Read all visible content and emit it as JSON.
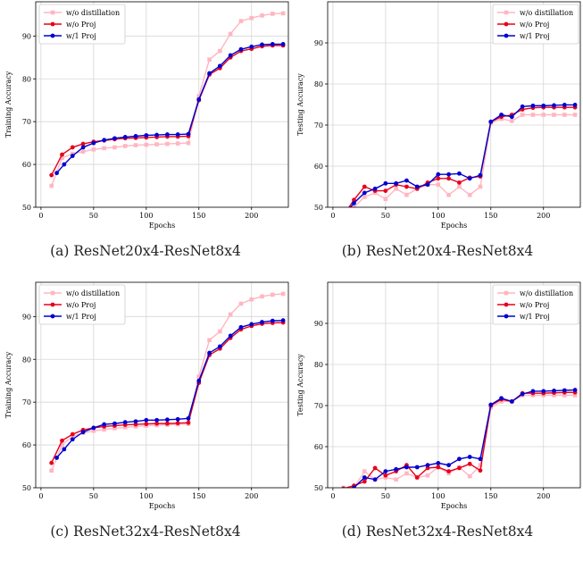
{
  "chart_data": [
    {
      "type": "line",
      "caption": "(a) ResNet20x4-ResNet8x4",
      "xlabel": "Epochs",
      "ylabel": "Training Accuracy",
      "xlim": [
        -5,
        235
      ],
      "ylim": [
        50,
        98
      ],
      "xticks": [
        0,
        50,
        100,
        150,
        200
      ],
      "yticks": [
        50,
        60,
        70,
        80,
        90
      ],
      "grid": true,
      "legend": "top-left",
      "series": [
        {
          "name": "w/o distillation",
          "color": "#ffb6c1",
          "marker": "square",
          "x": [
            10,
            20,
            30,
            40,
            50,
            60,
            70,
            80,
            90,
            100,
            110,
            120,
            130,
            140,
            150,
            160,
            170,
            180,
            190,
            200,
            210,
            220,
            230
          ],
          "y": [
            55.0,
            61.5,
            62.5,
            63.0,
            63.5,
            63.8,
            64.0,
            64.3,
            64.5,
            64.6,
            64.7,
            64.8,
            64.9,
            65.0,
            76.0,
            84.5,
            86.5,
            90.5,
            93.5,
            94.2,
            94.8,
            95.2,
            95.3
          ]
        },
        {
          "name": "w/o Proj",
          "color": "#e8001c",
          "marker": "circle",
          "x": [
            10,
            20,
            30,
            40,
            50,
            60,
            70,
            80,
            90,
            100,
            110,
            120,
            130,
            140,
            150,
            160,
            170,
            180,
            190,
            200,
            210,
            220,
            230
          ],
          "y": [
            57.5,
            62.3,
            64.0,
            64.8,
            65.3,
            65.6,
            65.9,
            66.1,
            66.2,
            66.3,
            66.4,
            66.5,
            66.5,
            66.6,
            75.0,
            81.0,
            82.5,
            85.0,
            86.5,
            87.0,
            87.6,
            87.8,
            87.8
          ]
        },
        {
          "name": "w/1 Proj",
          "color": "#0000d0",
          "marker": "circle",
          "x": [
            15,
            22,
            30,
            40,
            50,
            60,
            70,
            80,
            90,
            100,
            110,
            120,
            130,
            140,
            150,
            160,
            170,
            180,
            190,
            200,
            210,
            220,
            230
          ],
          "y": [
            58.0,
            60.0,
            62.0,
            64.0,
            65.0,
            65.7,
            66.1,
            66.4,
            66.6,
            66.8,
            66.9,
            67.0,
            67.0,
            67.1,
            75.2,
            81.3,
            83.0,
            85.5,
            86.9,
            87.5,
            88.0,
            88.1,
            88.1
          ]
        }
      ]
    },
    {
      "type": "line",
      "caption": "(b) ResNet20x4-ResNet8x4",
      "xlabel": "Epochs",
      "ylabel": "Testing Accuracy",
      "xlim": [
        -5,
        235
      ],
      "ylim": [
        50,
        100
      ],
      "xticks": [
        0,
        50,
        100,
        150,
        200
      ],
      "yticks": [
        50,
        60,
        70,
        80,
        90
      ],
      "grid": true,
      "legend": "top-right",
      "series": [
        {
          "name": "w/o distillation",
          "color": "#ffb6c1",
          "marker": "square",
          "x": [
            10,
            20,
            30,
            40,
            50,
            60,
            70,
            80,
            90,
            100,
            110,
            120,
            130,
            140,
            150,
            160,
            170,
            180,
            190,
            200,
            210,
            220,
            230
          ],
          "y": [
            48.0,
            50.0,
            52.5,
            53.5,
            52.0,
            54.5,
            53.0,
            54.5,
            55.5,
            55.5,
            53.0,
            55.0,
            53.0,
            55.0,
            70.5,
            71.5,
            71.0,
            72.5,
            72.5,
            72.5,
            72.5,
            72.5,
            72.5
          ]
        },
        {
          "name": "w/o Proj",
          "color": "#e8001c",
          "marker": "circle",
          "x": [
            10,
            20,
            30,
            40,
            50,
            60,
            70,
            80,
            90,
            100,
            110,
            120,
            130,
            140,
            150,
            160,
            170,
            180,
            190,
            200,
            210,
            220,
            230
          ],
          "y": [
            48.0,
            51.8,
            55.0,
            54.0,
            54.0,
            55.5,
            55.0,
            54.5,
            56.0,
            57.0,
            57.0,
            56.0,
            57.2,
            57.5,
            70.8,
            72.0,
            72.5,
            73.8,
            74.2,
            74.3,
            74.3,
            74.3,
            74.3
          ]
        },
        {
          "name": "w/1 Proj",
          "color": "#0000d0",
          "marker": "circle",
          "x": [
            10,
            20,
            30,
            40,
            50,
            60,
            70,
            80,
            90,
            100,
            110,
            120,
            130,
            140,
            150,
            160,
            170,
            180,
            190,
            200,
            210,
            220,
            230
          ],
          "y": [
            48.0,
            51.0,
            53.5,
            54.5,
            55.8,
            55.8,
            56.5,
            55.0,
            55.5,
            58.0,
            58.0,
            58.2,
            57.0,
            57.8,
            70.8,
            72.5,
            72.0,
            74.5,
            74.7,
            74.7,
            74.8,
            74.9,
            74.9
          ]
        }
      ]
    },
    {
      "type": "line",
      "caption": "(c) ResNet32x4-ResNet8x4",
      "xlabel": "Epochs",
      "ylabel": "Training Accuracy",
      "xlim": [
        -5,
        235
      ],
      "ylim": [
        50,
        98
      ],
      "xticks": [
        0,
        50,
        100,
        150,
        200
      ],
      "yticks": [
        50,
        60,
        70,
        80,
        90
      ],
      "grid": true,
      "legend": "top-left",
      "series": [
        {
          "name": "w/o distillation",
          "color": "#ffb6c1",
          "marker": "square",
          "x": [
            10,
            20,
            30,
            40,
            50,
            60,
            70,
            80,
            90,
            100,
            110,
            120,
            130,
            140,
            150,
            160,
            170,
            180,
            190,
            200,
            210,
            220,
            230
          ],
          "y": [
            54.0,
            60.0,
            62.0,
            62.8,
            63.3,
            63.6,
            63.9,
            64.1,
            64.3,
            64.5,
            64.6,
            64.7,
            64.8,
            64.9,
            76.0,
            84.5,
            86.5,
            90.5,
            93.0,
            94.0,
            94.7,
            95.1,
            95.3
          ]
        },
        {
          "name": "w/o Proj",
          "color": "#e8001c",
          "marker": "circle",
          "x": [
            10,
            20,
            30,
            40,
            50,
            60,
            70,
            80,
            90,
            100,
            110,
            120,
            130,
            140,
            150,
            160,
            170,
            180,
            190,
            200,
            210,
            220,
            230
          ],
          "y": [
            55.8,
            61.0,
            62.5,
            63.5,
            64.0,
            64.3,
            64.5,
            64.7,
            64.8,
            64.9,
            65.0,
            65.0,
            65.1,
            65.2,
            74.5,
            81.0,
            82.5,
            85.0,
            87.0,
            87.8,
            88.3,
            88.5,
            88.6
          ]
        },
        {
          "name": "w/1 Proj",
          "color": "#0000d0",
          "marker": "circle",
          "x": [
            15,
            22,
            30,
            40,
            50,
            60,
            70,
            80,
            90,
            100,
            110,
            120,
            130,
            140,
            150,
            160,
            170,
            180,
            190,
            200,
            210,
            220,
            230
          ],
          "y": [
            57.0,
            59.0,
            61.3,
            63.0,
            64.0,
            64.8,
            65.0,
            65.3,
            65.5,
            65.8,
            65.8,
            65.9,
            66.0,
            66.2,
            75.0,
            81.5,
            83.0,
            85.5,
            87.5,
            88.2,
            88.7,
            89.0,
            89.1
          ]
        }
      ]
    },
    {
      "type": "line",
      "caption": "(d) ResNet32x4-ResNet8x4",
      "xlabel": "Epochs",
      "ylabel": "Testing Accuracy",
      "xlim": [
        -5,
        235
      ],
      "ylim": [
        50,
        100
      ],
      "xticks": [
        0,
        50,
        100,
        150,
        200
      ],
      "yticks": [
        50,
        60,
        70,
        80,
        90
      ],
      "grid": true,
      "legend": "top-right",
      "series": [
        {
          "name": "w/o distillation",
          "color": "#ffb6c1",
          "marker": "square",
          "x": [
            10,
            20,
            30,
            40,
            50,
            60,
            70,
            80,
            90,
            100,
            110,
            120,
            130,
            140,
            150,
            160,
            170,
            180,
            190,
            200,
            210,
            220,
            230
          ],
          "y": [
            50.0,
            50.0,
            54.0,
            52.0,
            52.5,
            52.0,
            53.5,
            52.5,
            53.0,
            55.0,
            53.5,
            55.0,
            52.8,
            55.5,
            69.5,
            71.0,
            71.0,
            72.5,
            72.5,
            72.5,
            72.5,
            72.5,
            72.5
          ]
        },
        {
          "name": "w/o Proj",
          "color": "#e8001c",
          "marker": "circle",
          "x": [
            10,
            20,
            30,
            40,
            50,
            60,
            70,
            80,
            90,
            100,
            110,
            120,
            130,
            140,
            150,
            160,
            170,
            180,
            190,
            200,
            210,
            220,
            230
          ],
          "y": [
            49.8,
            50.5,
            51.5,
            54.8,
            53.0,
            54.0,
            55.5,
            52.5,
            54.8,
            55.0,
            54.0,
            54.8,
            55.8,
            54.2,
            70.0,
            71.5,
            71.0,
            73.0,
            73.0,
            73.0,
            73.1,
            73.2,
            73.2
          ]
        },
        {
          "name": "w/1 Proj",
          "color": "#0000d0",
          "marker": "circle",
          "x": [
            10,
            20,
            30,
            40,
            50,
            60,
            70,
            80,
            90,
            100,
            110,
            120,
            130,
            140,
            150,
            160,
            170,
            180,
            190,
            200,
            210,
            220,
            230
          ],
          "y": [
            49.5,
            50.0,
            52.5,
            52.0,
            54.0,
            54.5,
            55.0,
            55.0,
            55.5,
            56.0,
            55.5,
            57.0,
            57.5,
            57.0,
            70.2,
            71.8,
            71.0,
            72.8,
            73.5,
            73.5,
            73.6,
            73.7,
            73.8
          ]
        }
      ]
    }
  ]
}
